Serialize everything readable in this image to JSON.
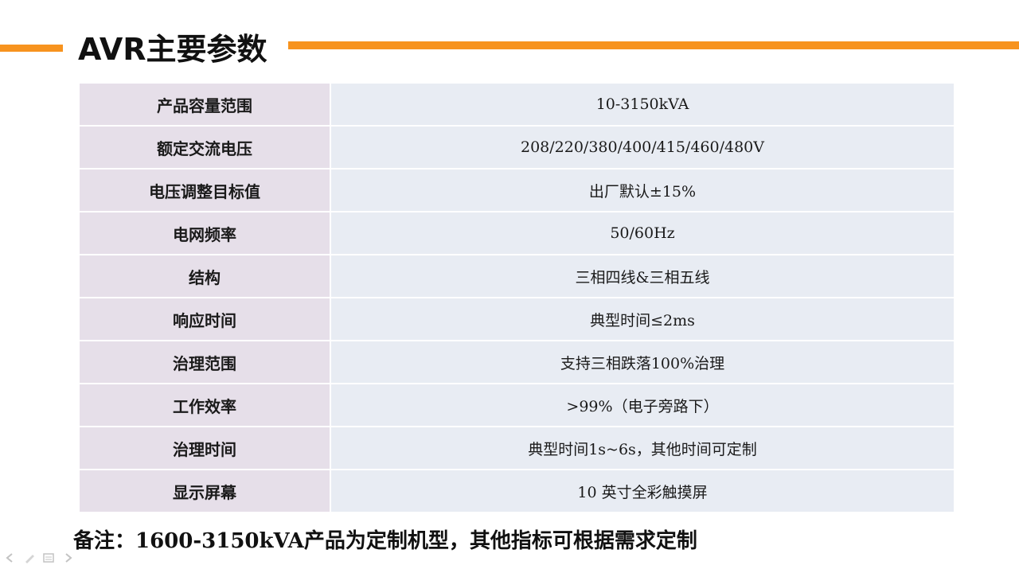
{
  "header": {
    "title": "AVR主要参数",
    "accent_color": "#f7931e"
  },
  "table": {
    "rows": [
      {
        "label": "产品容量范围",
        "value": "10-3150kVA"
      },
      {
        "label": "额定交流电压",
        "value": "208/220/380/400/415/460/480V"
      },
      {
        "label": "电压调整目标值",
        "value": "出厂默认±15%"
      },
      {
        "label": "电网频率",
        "value": "50/60Hz"
      },
      {
        "label": "结构",
        "value": "三相四线&三相五线"
      },
      {
        "label": "响应时间",
        "value": "典型时间≤2ms"
      },
      {
        "label": "治理范围",
        "value": "支持三相跌落100%治理"
      },
      {
        "label": "工作效率",
        "value": ">99%（电子旁路下）"
      },
      {
        "label": "治理时间",
        "value": "典型时间1s~6s，其他时间可定制"
      },
      {
        "label": "显示屏幕",
        "value": "10 英寸全彩触摸屏"
      }
    ],
    "label_bg": "#e6dfe9",
    "value_bg": "#e8ecf3"
  },
  "footer": {
    "note": "备注：1600-3150kVA产品为定制机型，其他指标可根据需求定制"
  },
  "nav": {
    "icons": [
      "arrow-left-icon",
      "pen-icon",
      "menu-icon",
      "arrow-right-icon"
    ]
  }
}
